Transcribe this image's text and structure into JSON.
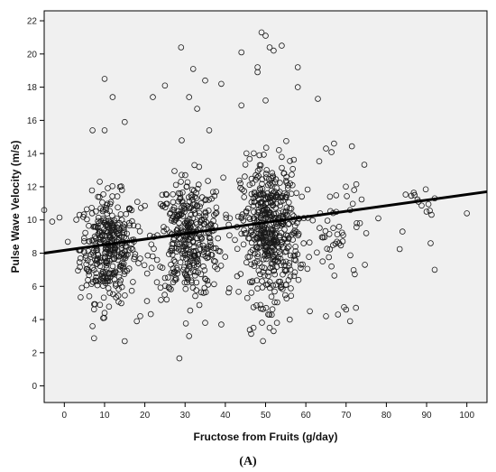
{
  "chart_data": {
    "type": "scatter",
    "title": "",
    "xlabel": "Fructose from Fruits (g/day)",
    "ylabel": "Pulse Wave Velocity (m/s)",
    "panel_label": "(A)",
    "xlim": [
      -5,
      105
    ],
    "ylim": [
      -1,
      22.6
    ],
    "xticks": [
      0,
      10,
      20,
      30,
      40,
      50,
      60,
      70,
      80,
      90,
      100
    ],
    "yticks": [
      0,
      2,
      4,
      6,
      8,
      10,
      12,
      14,
      16,
      18,
      20,
      22
    ],
    "grid": false,
    "marker": "open-circle",
    "plot_background": "#f0f0f0",
    "marker_color": "#1a1a1a",
    "fit_line_color": "#000000",
    "fit_line": {
      "x": [
        -5,
        105
      ],
      "y": [
        8.0,
        11.7
      ]
    },
    "clusters": [
      {
        "center_x": 11,
        "spread_x": 3.5,
        "center_y": 8.3,
        "spread_y": 1.6,
        "count": 360
      },
      {
        "center_x": 31,
        "spread_x": 4.2,
        "center_y": 8.9,
        "spread_y": 1.8,
        "count": 380
      },
      {
        "center_x": 51,
        "spread_x": 3.6,
        "center_y": 9.3,
        "spread_y": 2.1,
        "count": 500
      },
      {
        "center_x": 68,
        "spread_x": 4.0,
        "center_y": 9.2,
        "spread_y": 1.8,
        "count": 55
      },
      {
        "center_x": 88,
        "spread_x": 4.0,
        "center_y": 10.3,
        "spread_y": 1.5,
        "count": 10
      }
    ],
    "outliers": [
      [
        -5,
        10.6
      ],
      [
        -3,
        9.9
      ],
      [
        10,
        18.5
      ],
      [
        12,
        17.4
      ],
      [
        15,
        15.9
      ],
      [
        7,
        15.4
      ],
      [
        10,
        15.4
      ],
      [
        15,
        2.7
      ],
      [
        7,
        3.6
      ],
      [
        18,
        3.9
      ],
      [
        10,
        4.4
      ],
      [
        25,
        18.1
      ],
      [
        22,
        17.4
      ],
      [
        29,
        20.4
      ],
      [
        32,
        19.1
      ],
      [
        31,
        17.4
      ],
      [
        33,
        16.7
      ],
      [
        35,
        18.4
      ],
      [
        39,
        18.2
      ],
      [
        36,
        15.4
      ],
      [
        31,
        3.0
      ],
      [
        35,
        3.8
      ],
      [
        39,
        3.7
      ],
      [
        44,
        20.1
      ],
      [
        48,
        19.2
      ],
      [
        48,
        18.9
      ],
      [
        49,
        21.3
      ],
      [
        50,
        21.1
      ],
      [
        51,
        20.4
      ],
      [
        52,
        20.2
      ],
      [
        54,
        20.5
      ],
      [
        50,
        17.2
      ],
      [
        44,
        16.9
      ],
      [
        58,
        19.2
      ],
      [
        58,
        18.0
      ],
      [
        63,
        17.3
      ],
      [
        65,
        14.3
      ],
      [
        67,
        14.6
      ],
      [
        61,
        4.5
      ],
      [
        65,
        4.2
      ],
      [
        68,
        4.3
      ],
      [
        70,
        4.6
      ],
      [
        71,
        3.9
      ],
      [
        51,
        3.5
      ],
      [
        52,
        3.3
      ],
      [
        56,
        4.0
      ],
      [
        47,
        3.5
      ],
      [
        84,
        9.3
      ],
      [
        87,
        11.5
      ],
      [
        88,
        11.1
      ],
      [
        90,
        10.5
      ],
      [
        91,
        8.6
      ],
      [
        92,
        7.0
      ],
      [
        92,
        11.3
      ],
      [
        78,
        10.1
      ],
      [
        75,
        9.2
      ],
      [
        72,
        11.8
      ],
      [
        100,
        10.4
      ]
    ]
  }
}
